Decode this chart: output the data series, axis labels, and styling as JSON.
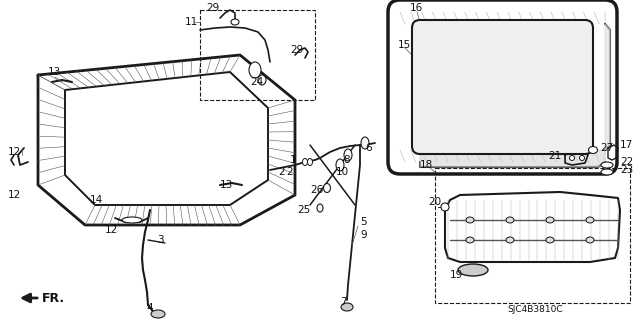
{
  "bg_color": "#ffffff",
  "line_color": "#1a1a1a",
  "text_color": "#111111",
  "fig_width": 6.4,
  "fig_height": 3.19,
  "dpi": 100,
  "part_code": "SJC4B3810C"
}
